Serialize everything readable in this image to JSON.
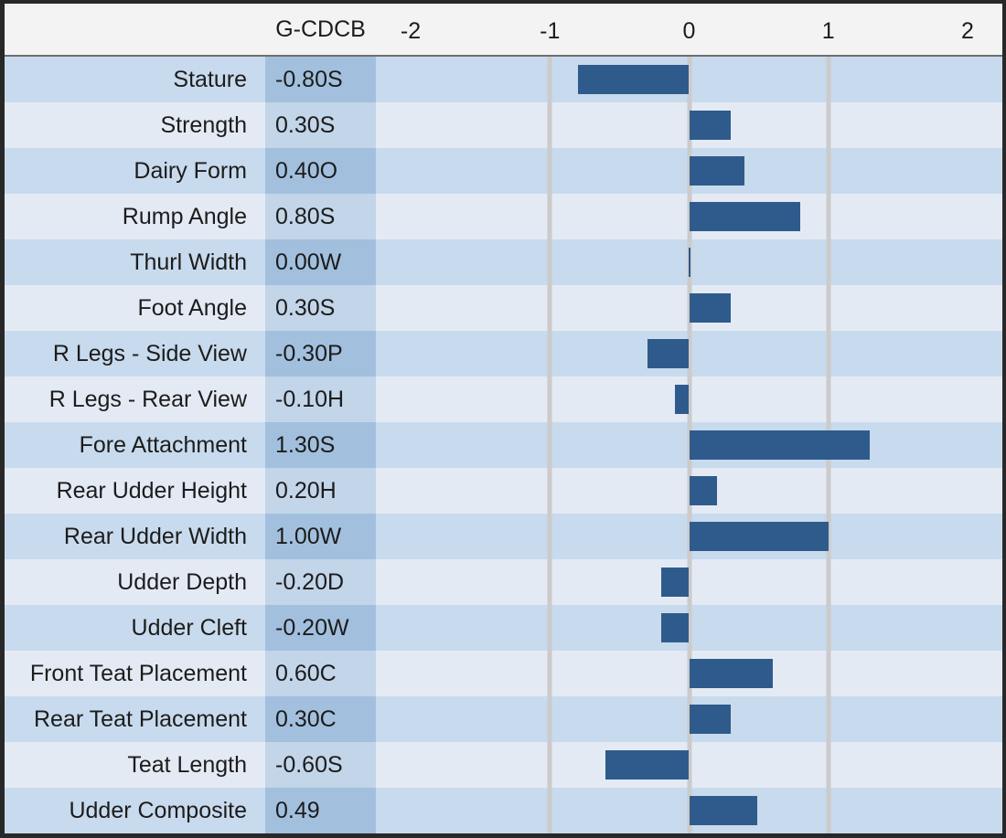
{
  "header": {
    "value_column_label": "G-CDCB"
  },
  "axis": {
    "xlim": [
      -2.25,
      2.25
    ],
    "tick_labels": [
      "-2",
      "-1",
      "0",
      "1",
      "2"
    ],
    "tick_values": [
      -2,
      -1,
      0,
      1,
      2
    ],
    "gridline_values": [
      -1,
      0,
      1
    ]
  },
  "colors": {
    "bar": "#2f5b8c",
    "row_dark": "#c8daed",
    "row_light": "#e4eaf4",
    "val_dark": "#a2c0de",
    "val_light": "#c2d5e9",
    "grid": "#cbcbcb",
    "header_bg": "#f3f3f3",
    "header_line": "#6f6f6f",
    "border": "#282828"
  },
  "chart_data": {
    "type": "bar",
    "orientation": "horizontal",
    "series_name": "G-CDCB",
    "title": "",
    "xlabel": "",
    "ylabel": "",
    "xlim": [
      -2.25,
      2.25
    ],
    "grid": "vertical at -1, 0, 1",
    "categories": [
      "Stature",
      "Strength",
      "Dairy Form",
      "Rump Angle",
      "Thurl Width",
      "Foot Angle",
      "R Legs - Side View",
      "R Legs - Rear View",
      "Fore Attachment",
      "Rear Udder Height",
      "Rear Udder Width",
      "Udder Depth",
      "Udder Cleft",
      "Front Teat Placement",
      "Rear Teat Placement",
      "Teat Length",
      "Udder Composite"
    ],
    "values": [
      -0.8,
      0.3,
      0.4,
      0.8,
      0.0,
      0.3,
      -0.3,
      -0.1,
      1.3,
      0.2,
      1.0,
      -0.2,
      -0.2,
      0.6,
      0.3,
      -0.6,
      0.49
    ],
    "value_labels": [
      "-0.80S",
      "0.30S",
      "0.40O",
      "0.80S",
      "0.00W",
      "0.30S",
      "-0.30P",
      "-0.10H",
      "1.30S",
      "0.20H",
      "1.00W",
      "-0.20D",
      "-0.20W",
      "0.60C",
      "0.30C",
      "-0.60S",
      "0.49"
    ]
  }
}
